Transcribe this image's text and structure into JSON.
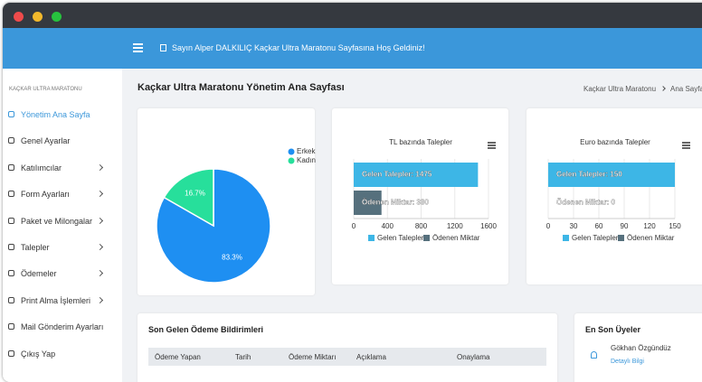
{
  "header": {
    "welcome": "Sayın Alper DALKILIÇ Kaçkar Ultra Maratonu Sayfasına Hoş Geldiniz!"
  },
  "sidebar": {
    "brand": "KAÇKAR ULTRA MARATONU",
    "items": [
      "Yönetim Ana Sayfa",
      "Genel Ayarlar",
      "Katılımcılar",
      "Form Ayarları",
      "Paket ve Milongalar",
      "Talepler",
      "Ödemeler",
      "Print Alma İşlemleri",
      "Mail Gönderim Ayarları",
      "Çıkış Yap"
    ]
  },
  "page": {
    "title": "Kaçkar Ultra Maratonu Yönetim Ana Sayfası",
    "breadcrumb": [
      "Kaçkar Ultra Maratonu",
      "Ana Sayfa"
    ]
  },
  "gender_chart": {
    "type": "pie",
    "categories": [
      "Erkek",
      "Kadın"
    ],
    "values": [
      83.3,
      16.7
    ],
    "value_labels": [
      "83.3%",
      "16.7%"
    ],
    "colors": [
      "#1e8ff2",
      "#27df9b"
    ]
  },
  "tl_chart": {
    "type": "bar",
    "title": "TL bazında Talepler",
    "categories": [
      "Gelen Talepler",
      "Ödenen Miktar"
    ],
    "values": [
      1475,
      330
    ],
    "value_labels": [
      "Gelen Talepler: 1475",
      "Ödenen Miktar: 330"
    ],
    "colors": [
      "#3db6e6",
      "#56707d"
    ],
    "xlim": [
      0,
      1600
    ],
    "xticks": [
      0,
      400,
      800,
      1200,
      1600
    ],
    "grid": true
  },
  "euro_chart": {
    "type": "bar",
    "title": "Euro bazında Talepler",
    "categories": [
      "Gelen Talepler",
      "Ödenen Miktar"
    ],
    "values": [
      150,
      0
    ],
    "value_labels": [
      "Gelen Talepler: 150",
      "Ödenen Miktar: 0"
    ],
    "colors": [
      "#3db6e6",
      "#56707d"
    ],
    "xlim": [
      0,
      150
    ],
    "xticks": [
      0,
      30,
      60,
      90,
      120,
      150
    ],
    "grid": true
  },
  "payments": {
    "title": "Son Gelen Ödeme Bildirimleri",
    "columns": [
      "Ödeme Yapan",
      "Tarih",
      "Ödeme Miktarı",
      "Açıklama",
      "Onaylama"
    ]
  },
  "members": {
    "title": "En Son Üyeler",
    "users": [
      {
        "name": "Gökhan Özgündüz",
        "link": "Detaylı Bilgi"
      }
    ]
  }
}
